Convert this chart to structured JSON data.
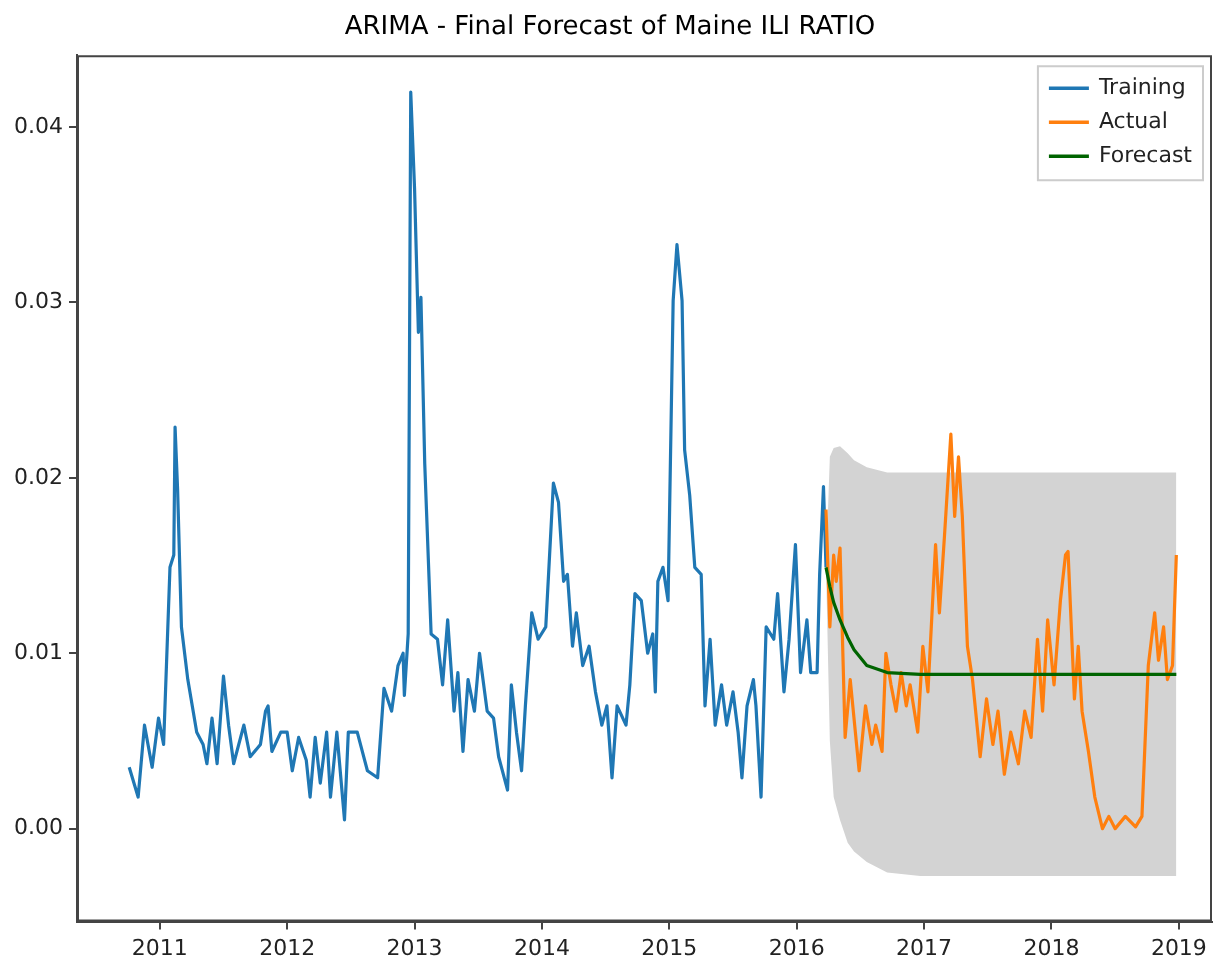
{
  "chart_data": {
    "type": "line",
    "title": "ARIMA - Final Forecast of Maine ILI RATIO",
    "legend": "top right",
    "grid": false,
    "marker": "none",
    "line_style": "solid",
    "xlim": [
      2010.35,
      2019.26
    ],
    "xticks": [
      2011,
      2012,
      2013,
      2014,
      2015,
      2016,
      2017,
      2018,
      2019
    ],
    "ylim": [
      -0.0053,
      0.0441
    ],
    "yticks": [
      {
        "value": 0,
        "label": "0.00"
      },
      {
        "value": 0.01,
        "label": "0.01"
      },
      {
        "value": 0.02,
        "label": "0.02"
      },
      {
        "value": 0.03,
        "label": "0.03"
      },
      {
        "value": 0.04,
        "label": "0.04"
      }
    ],
    "series": [
      {
        "name": "Training",
        "color": "#1f77b4",
        "x": [
          2010.76,
          2010.83,
          2010.88,
          2010.94,
          2010.99,
          2011.03,
          2011.08,
          2011.11,
          2011.12,
          2011.14,
          2011.17,
          2011.22,
          2011.29,
          2011.34,
          2011.37,
          2011.41,
          2011.45,
          2011.5,
          2011.54,
          2011.58,
          2011.66,
          2011.71,
          2011.79,
          2011.83,
          2011.85,
          2011.88,
          2011.95,
          2012.0,
          2012.04,
          2012.09,
          2012.15,
          2012.18,
          2012.22,
          2012.26,
          2012.31,
          2012.34,
          2012.39,
          2012.45,
          2012.48,
          2012.55,
          2012.63,
          2012.71,
          2012.76,
          2012.82,
          2012.87,
          2012.91,
          2012.92,
          2012.95,
          2012.97,
          2013.0,
          2013.03,
          2013.05,
          2013.08,
          2013.13,
          2013.18,
          2013.22,
          2013.26,
          2013.31,
          2013.34,
          2013.38,
          2013.42,
          2013.47,
          2013.51,
          2013.57,
          2013.62,
          2013.66,
          2013.73,
          2013.76,
          2013.8,
          2013.84,
          2013.87,
          2013.92,
          2013.97,
          2014.03,
          2014.06,
          2014.09,
          2014.13,
          2014.17,
          2014.2,
          2014.24,
          2014.27,
          2014.32,
          2014.37,
          2014.42,
          2014.47,
          2014.51,
          2014.55,
          2014.59,
          2014.66,
          2014.69,
          2014.73,
          2014.78,
          2014.83,
          2014.87,
          2014.89,
          2014.91,
          2014.95,
          2014.99,
          2015.03,
          2015.06,
          2015.1,
          2015.12,
          2015.16,
          2015.2,
          2015.25,
          2015.28,
          2015.32,
          2015.36,
          2015.41,
          2015.45,
          2015.5,
          2015.54,
          2015.57,
          2015.61,
          2015.66,
          2015.68,
          2015.72,
          2015.76,
          2015.82,
          2015.85,
          2015.9,
          2015.94,
          2015.99,
          2016.03,
          2016.08,
          2016.11,
          2016.16,
          2016.18,
          2016.21,
          2016.23
        ],
        "values": [
          0.0035,
          0.0018,
          0.0059,
          0.0035,
          0.0063,
          0.0048,
          0.0149,
          0.0156,
          0.0229,
          0.0193,
          0.0115,
          0.0085,
          0.0055,
          0.0048,
          0.0037,
          0.0063,
          0.0037,
          0.0087,
          0.0059,
          0.0037,
          0.0059,
          0.0041,
          0.0048,
          0.0067,
          0.007,
          0.0044,
          0.0055,
          0.0055,
          0.0033,
          0.0052,
          0.0039,
          0.0018,
          0.0052,
          0.0026,
          0.0055,
          0.0018,
          0.0055,
          0.0005,
          0.0055,
          0.0055,
          0.0033,
          0.0029,
          0.008,
          0.0067,
          0.0093,
          0.01,
          0.0076,
          0.0111,
          0.042,
          0.0365,
          0.0283,
          0.0303,
          0.0208,
          0.0111,
          0.0108,
          0.0082,
          0.0119,
          0.0067,
          0.0089,
          0.0044,
          0.0085,
          0.0067,
          0.01,
          0.0067,
          0.0063,
          0.0041,
          0.0022,
          0.0082,
          0.0055,
          0.0033,
          0.007,
          0.0123,
          0.0108,
          0.0115,
          0.0156,
          0.0197,
          0.0186,
          0.0141,
          0.0145,
          0.0104,
          0.0123,
          0.0093,
          0.0104,
          0.0078,
          0.0059,
          0.007,
          0.0029,
          0.007,
          0.0059,
          0.0082,
          0.0134,
          0.013,
          0.01,
          0.0111,
          0.0078,
          0.0141,
          0.0149,
          0.013,
          0.0301,
          0.0333,
          0.0301,
          0.0216,
          0.019,
          0.0149,
          0.0145,
          0.007,
          0.0108,
          0.0059,
          0.0082,
          0.0059,
          0.0078,
          0.0055,
          0.0029,
          0.007,
          0.0085,
          0.007,
          0.0018,
          0.0115,
          0.0108,
          0.0134,
          0.0078,
          0.0108,
          0.0162,
          0.0089,
          0.0119,
          0.0089,
          0.0089,
          0.0145,
          0.0195,
          0.0149
        ]
      },
      {
        "name": "Actual",
        "color": "#ff7f0e",
        "x": [
          2016.23,
          2016.26,
          2016.29,
          2016.31,
          2016.34,
          2016.38,
          2016.42,
          2016.49,
          2016.54,
          2016.59,
          2016.62,
          2016.67,
          2016.7,
          2016.74,
          2016.78,
          2016.82,
          2016.86,
          2016.89,
          2016.95,
          2016.99,
          2017.03,
          2017.09,
          2017.12,
          2017.16,
          2017.21,
          2017.24,
          2017.27,
          2017.3,
          2017.34,
          2017.38,
          2017.44,
          2017.49,
          2017.54,
          2017.58,
          2017.63,
          2017.68,
          2017.74,
          2017.79,
          2017.84,
          2017.89,
          2017.93,
          2017.97,
          2018.02,
          2018.07,
          2018.11,
          2018.13,
          2018.18,
          2018.21,
          2018.24,
          2018.29,
          2018.34,
          2018.4,
          2018.45,
          2018.5,
          2018.58,
          2018.66,
          2018.71,
          2018.76,
          2018.81,
          2018.84,
          2018.88,
          2018.91,
          2018.95,
          2018.98
        ],
        "values": [
          0.0182,
          0.0115,
          0.0156,
          0.0141,
          0.016,
          0.0052,
          0.0085,
          0.0033,
          0.007,
          0.0048,
          0.0059,
          0.0044,
          0.01,
          0.0082,
          0.0067,
          0.0089,
          0.007,
          0.0082,
          0.0055,
          0.0104,
          0.0078,
          0.0162,
          0.0123,
          0.0167,
          0.0225,
          0.0178,
          0.0212,
          0.0178,
          0.0104,
          0.0085,
          0.0041,
          0.0074,
          0.0048,
          0.0067,
          0.0031,
          0.0055,
          0.0037,
          0.0067,
          0.0052,
          0.0108,
          0.0067,
          0.0119,
          0.0082,
          0.013,
          0.0156,
          0.0158,
          0.0074,
          0.0104,
          0.0067,
          0.0044,
          0.0018,
          0,
          0.0007,
          0,
          0.0007,
          0.0001,
          0.0007,
          0.0093,
          0.0123,
          0.0096,
          0.0115,
          0.0085,
          0.0093,
          0.0156
        ]
      },
      {
        "name": "Forecast",
        "color": "#006400",
        "x": [
          2016.23,
          2016.26,
          2016.29,
          2016.34,
          2016.4,
          2016.45,
          2016.55,
          2016.71,
          2016.97,
          2018.98
        ],
        "values": [
          0.0149,
          0.0138,
          0.0129,
          0.0119,
          0.0109,
          0.0102,
          0.0093,
          0.0089,
          0.0088,
          0.0088
        ],
        "upper": [
          0.0149,
          0.0212,
          0.0217,
          0.0218,
          0.0214,
          0.021,
          0.0206,
          0.0203,
          0.0203,
          0.0203
        ],
        "lower": [
          0.0149,
          0.005,
          0.0018,
          0.0005,
          -0.0008,
          -0.0013,
          -0.0019,
          -0.0025,
          -0.0027,
          -0.0027
        ]
      }
    ]
  }
}
